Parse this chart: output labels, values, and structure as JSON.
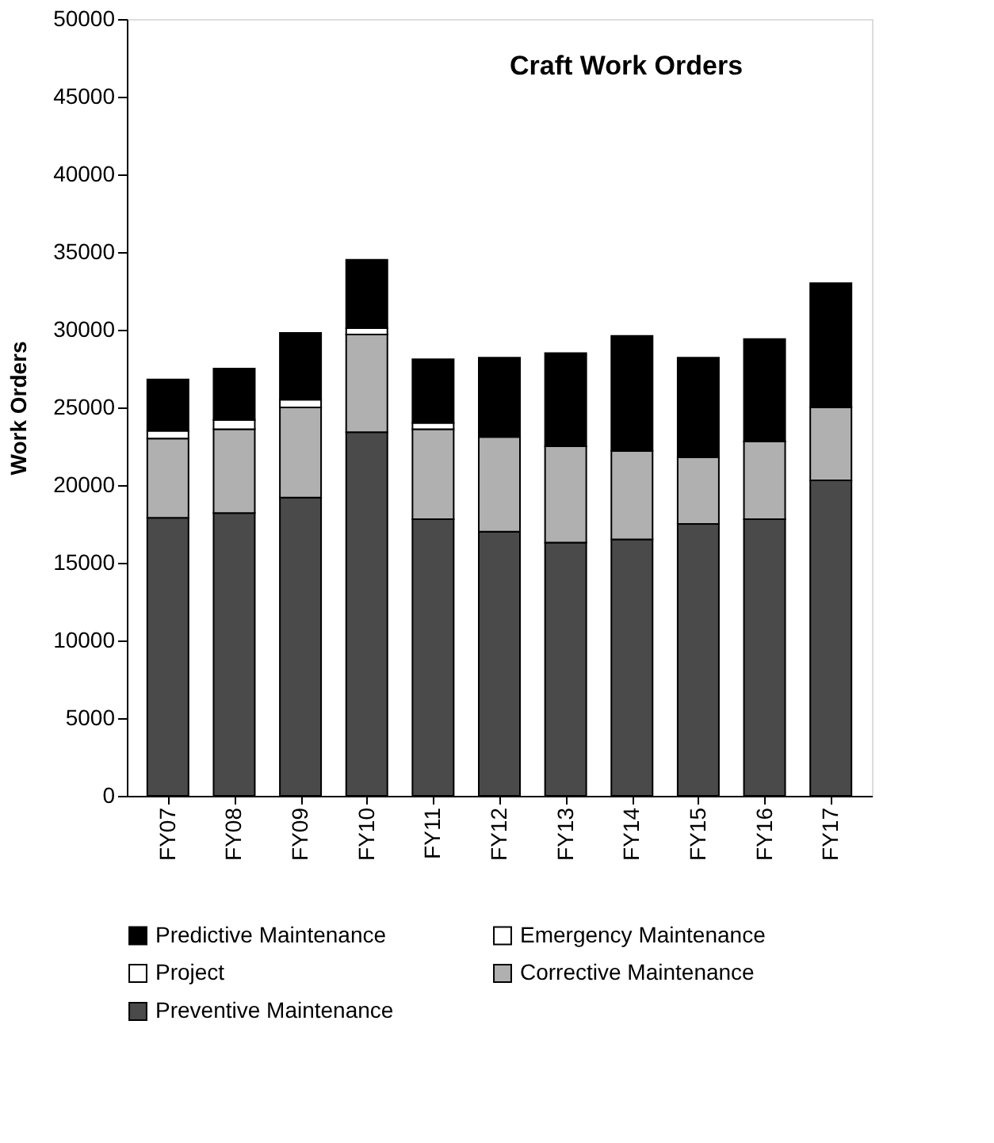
{
  "chart_data": {
    "type": "bar",
    "title": "Craft Work Orders",
    "ylabel": "Work Orders",
    "categories": [
      "FY07",
      "FY08",
      "FY09",
      "FY10",
      "FY11",
      "FY12",
      "FY13",
      "FY14",
      "FY15",
      "FY16",
      "FY17"
    ],
    "stacked": true,
    "series": [
      {
        "name": "Preventive Maintenance",
        "color": "#4a4a4a",
        "values": [
          17900,
          18200,
          19200,
          23400,
          17800,
          17000,
          16300,
          16500,
          17500,
          17800,
          20300
        ]
      },
      {
        "name": "Corrective Maintenance",
        "color": "#b0b0b0",
        "values": [
          5100,
          5400,
          5800,
          6300,
          5800,
          6100,
          6200,
          5700,
          4300,
          5000,
          4700
        ]
      },
      {
        "name": "Project",
        "color": "#ffffff",
        "values": [
          null,
          null,
          null,
          null,
          null,
          null,
          null,
          null,
          null,
          null,
          null
        ]
      },
      {
        "name": "Emergency Maintenance",
        "color": "#ffffff",
        "values": [
          500,
          600,
          500,
          400,
          400,
          null,
          null,
          null,
          null,
          null,
          null
        ]
      },
      {
        "name": "Predictive Maintenance",
        "color": "#000000",
        "values": [
          3300,
          3300,
          4300,
          4400,
          4100,
          5100,
          6000,
          7400,
          6400,
          6600,
          8000
        ]
      }
    ],
    "ylim": [
      0,
      50000
    ],
    "yticks": [
      0,
      5000,
      10000,
      15000,
      20000,
      25000,
      30000,
      35000,
      40000,
      45000,
      50000
    ],
    "grid": false,
    "legend": "bottom"
  }
}
